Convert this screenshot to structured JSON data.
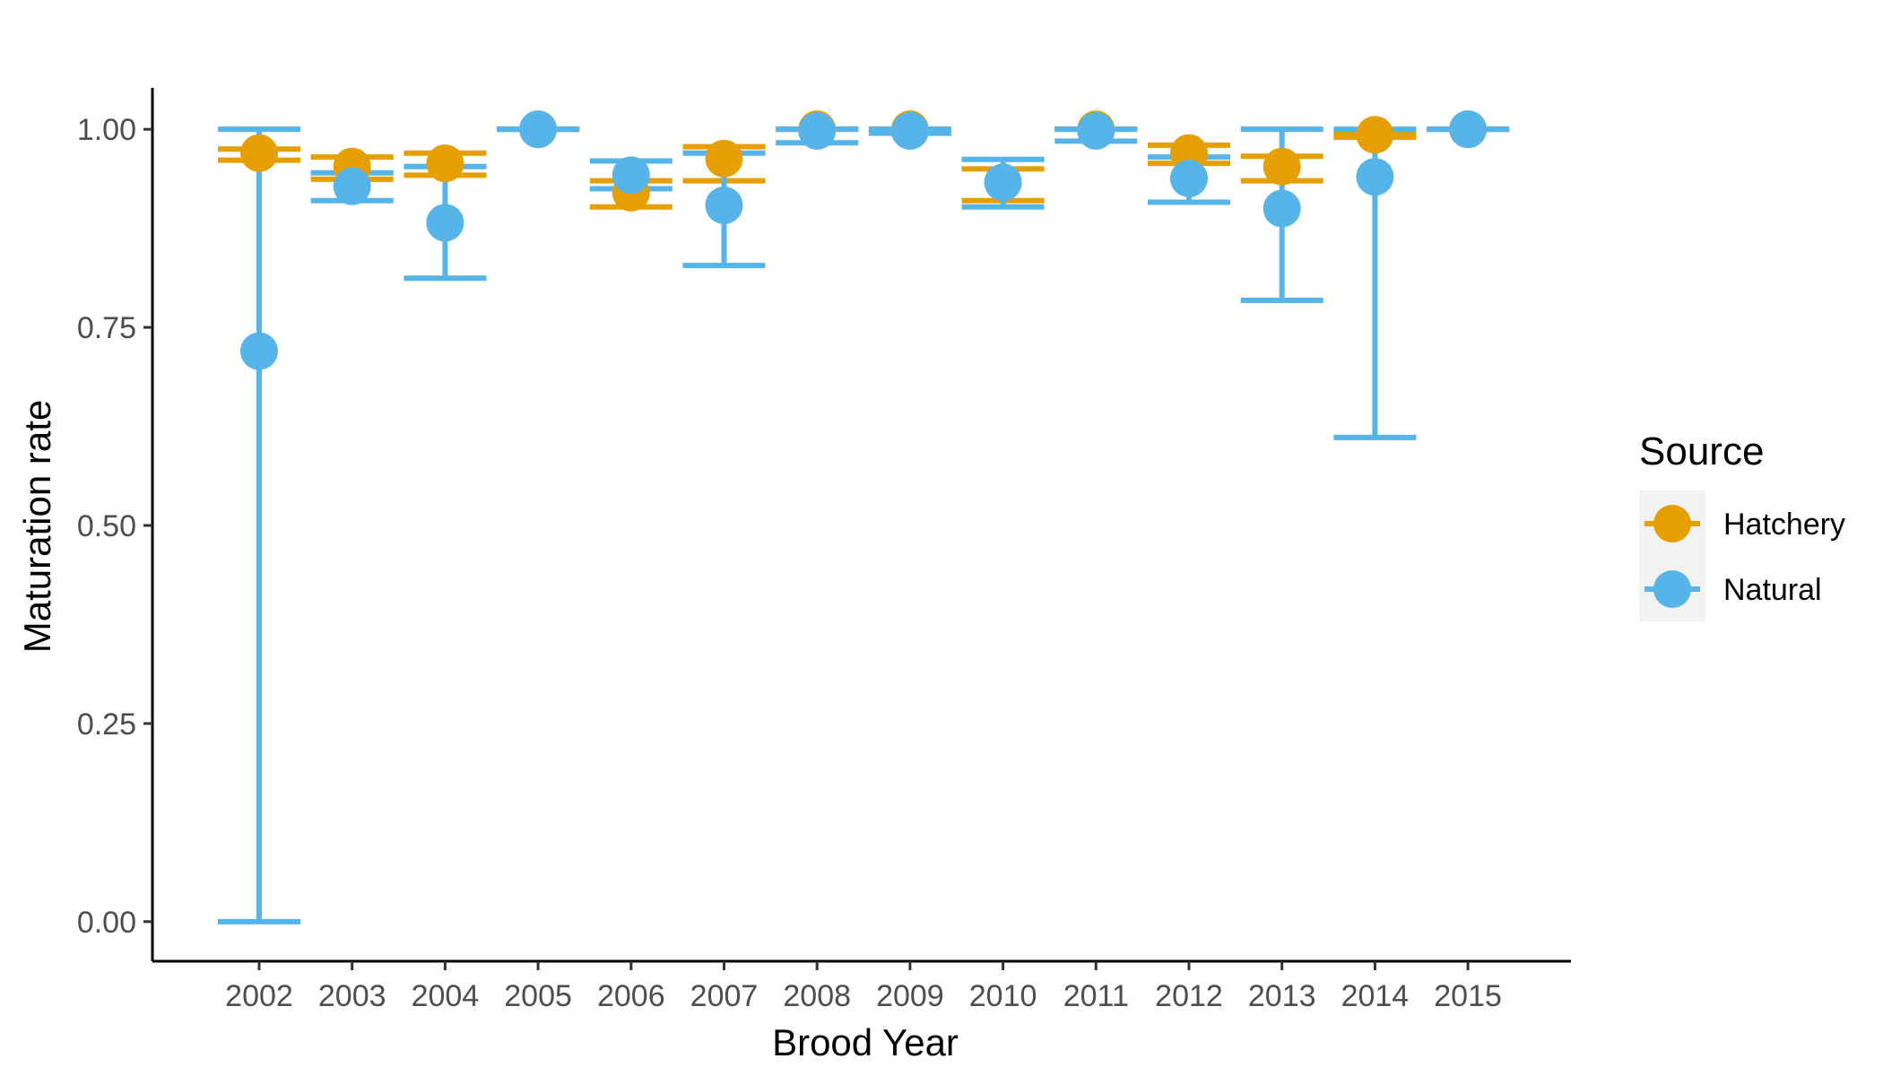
{
  "chart_data": {
    "type": "scatter",
    "xlabel": "Brood Year",
    "ylabel": "Maturation rate",
    "categories": [
      "2002",
      "2003",
      "2004",
      "2005",
      "2006",
      "2007",
      "2008",
      "2009",
      "2010",
      "2011",
      "2012",
      "2013",
      "2014",
      "2015"
    ],
    "ylim": [
      -0.05,
      1.05
    ],
    "yticks": [
      0.0,
      0.25,
      0.5,
      0.75,
      1.0
    ],
    "ytick_labels": [
      "0.00",
      "0.25",
      "0.50",
      "0.75",
      "1.00"
    ],
    "grid": false,
    "legend": {
      "title": "Source",
      "placement": "right",
      "entries": [
        "Hatchery",
        "Natural"
      ]
    },
    "series": [
      {
        "name": "Hatchery",
        "color": "#E69F00",
        "points": [
          {
            "x": "2002",
            "y": 0.97,
            "lo": 0.961,
            "hi": 0.975
          },
          {
            "x": "2003",
            "y": 0.953,
            "lo": 0.937,
            "hi": 0.965
          },
          {
            "x": "2004",
            "y": 0.957,
            "lo": 0.942,
            "hi": 0.97
          },
          {
            "x": "2005",
            "y": 1.0,
            "lo": 1.0,
            "hi": 1.0
          },
          {
            "x": "2006",
            "y": 0.92,
            "lo": 0.902,
            "hi": 0.935
          },
          {
            "x": "2007",
            "y": 0.963,
            "lo": 0.935,
            "hi": 0.978
          },
          {
            "x": "2008",
            "y": 1.0,
            "lo": 1.0,
            "hi": 1.0
          },
          {
            "x": "2009",
            "y": 1.0,
            "lo": 1.0,
            "hi": 1.0
          },
          {
            "x": "2010",
            "y": 0.933,
            "lo": 0.91,
            "hi": 0.95
          },
          {
            "x": "2011",
            "y": 1.0,
            "lo": 1.0,
            "hi": 1.0
          },
          {
            "x": "2012",
            "y": 0.97,
            "lo": 0.957,
            "hi": 0.98
          },
          {
            "x": "2013",
            "y": 0.953,
            "lo": 0.935,
            "hi": 0.966
          },
          {
            "x": "2014",
            "y": 0.993,
            "lo": 0.99,
            "hi": 0.996
          },
          {
            "x": "2015",
            "y": 1.0,
            "lo": 1.0,
            "hi": 1.0
          }
        ]
      },
      {
        "name": "Natural",
        "color": "#56B4E9",
        "points": [
          {
            "x": "2002",
            "y": 0.72,
            "lo": 0.0,
            "hi": 1.0
          },
          {
            "x": "2003",
            "y": 0.928,
            "lo": 0.91,
            "hi": 0.945
          },
          {
            "x": "2004",
            "y": 0.882,
            "lo": 0.812,
            "hi": 0.953
          },
          {
            "x": "2005",
            "y": 1.0,
            "lo": 1.0,
            "hi": 1.0
          },
          {
            "x": "2006",
            "y": 0.942,
            "lo": 0.925,
            "hi": 0.96
          },
          {
            "x": "2007",
            "y": 0.904,
            "lo": 0.828,
            "hi": 0.97
          },
          {
            "x": "2008",
            "y": 0.998,
            "lo": 0.983,
            "hi": 1.0
          },
          {
            "x": "2009",
            "y": 0.998,
            "lo": 0.995,
            "hi": 1.0
          },
          {
            "x": "2010",
            "y": 0.933,
            "lo": 0.902,
            "hi": 0.962
          },
          {
            "x": "2011",
            "y": 0.998,
            "lo": 0.985,
            "hi": 1.0
          },
          {
            "x": "2012",
            "y": 0.938,
            "lo": 0.908,
            "hi": 0.965
          },
          {
            "x": "2013",
            "y": 0.9,
            "lo": 0.784,
            "hi": 1.0
          },
          {
            "x": "2014",
            "y": 0.94,
            "lo": 0.611,
            "hi": 1.0
          },
          {
            "x": "2015",
            "y": 1.0,
            "lo": 1.0,
            "hi": 1.0
          }
        ]
      }
    ]
  }
}
